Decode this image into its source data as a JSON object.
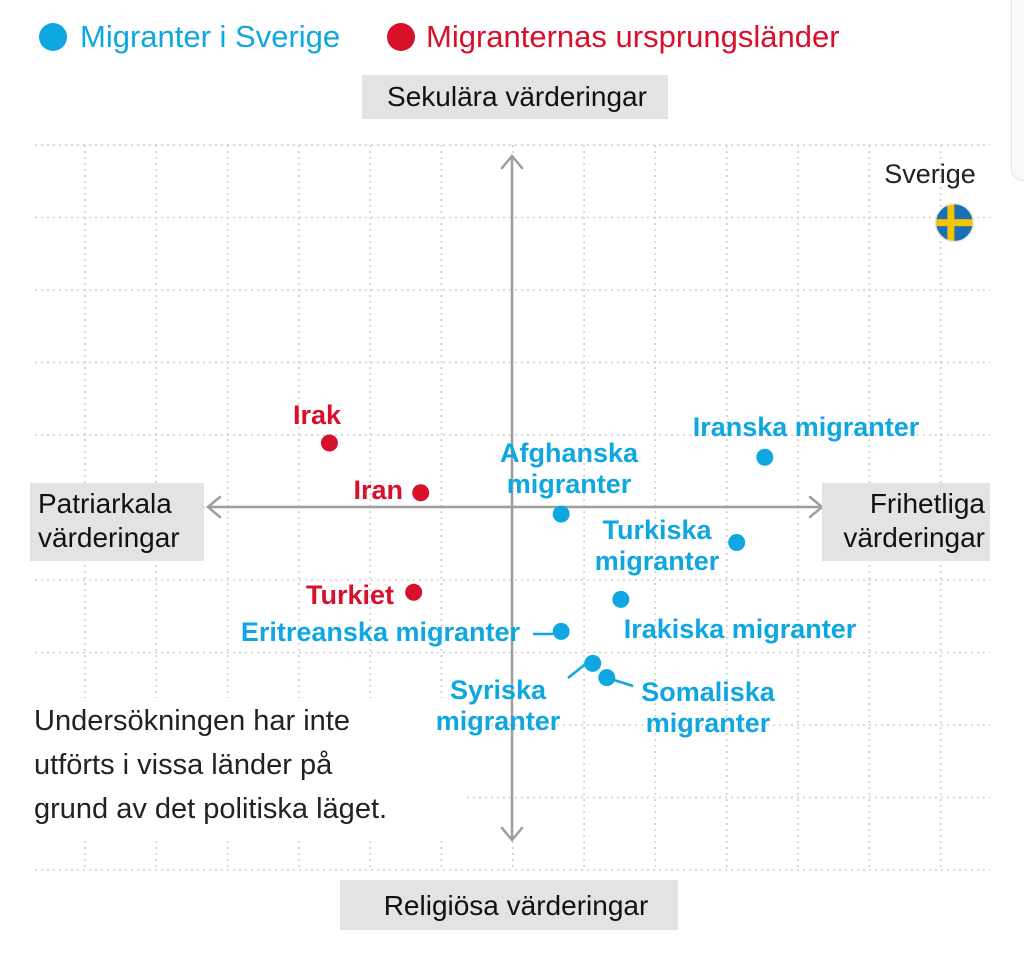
{
  "colors": {
    "blue": "#0fa7df",
    "red": "#d8102c",
    "grid": "#cfcfcf",
    "axis": "#9e9e9e",
    "label_box": "#e3e3e3",
    "text": "#1a1a1a"
  },
  "legend": [
    {
      "label": "Migranter i Sverige",
      "color": "#0fa7df"
    },
    {
      "label": "Migranternas ursprungsländer",
      "color": "#d8102c"
    }
  ],
  "axis_labels": {
    "top": "Sekulära värderingar",
    "bottom": "Religiösa värderingar",
    "left": [
      "Patriarkala",
      "värderingar"
    ],
    "right": [
      "Frihetliga",
      "värderingar"
    ]
  },
  "note": [
    "Undersökningen har inte",
    "utförts i vissa länder på",
    "grund av det politiska läget."
  ],
  "chart_data": {
    "type": "scatter",
    "xlabel": "Patriarkala värderingar – Frihetliga värderingar",
    "ylabel": "Religiösa värderingar – Sekulära värderingar",
    "grid": true,
    "legend_position": "top-left",
    "xlim": [
      -6.8,
      6.8
    ],
    "ylim": [
      -5,
      5.2
    ],
    "points": [
      {
        "label": "Sverige",
        "lines": [
          "Sverige"
        ],
        "group": "sweden",
        "x": 6.3,
        "y": 4.0,
        "icon": "sweden-flag-icon"
      },
      {
        "label": "Irak",
        "lines": [
          "Irak"
        ],
        "group": "origin",
        "x": -2.6,
        "y": 0.9
      },
      {
        "label": "Iran",
        "lines": [
          "Iran"
        ],
        "group": "origin",
        "x": -1.3,
        "y": 0.2
      },
      {
        "label": "Turkiet",
        "lines": [
          "Turkiet"
        ],
        "group": "origin",
        "x": -1.4,
        "y": -1.2
      },
      {
        "label": "Iranska migranter",
        "lines": [
          "Iranska migranter"
        ],
        "group": "migrant",
        "x": 3.6,
        "y": 0.7
      },
      {
        "label": "Afghanska migranter",
        "lines": [
          "Afghanska",
          "migranter"
        ],
        "group": "migrant",
        "x": 0.7,
        "y": -0.1
      },
      {
        "label": "Turkiska migranter",
        "lines": [
          "Turkiska",
          "migranter"
        ],
        "group": "migrant",
        "x": 3.2,
        "y": -0.5
      },
      {
        "label": "Irakiska migranter",
        "lines": [
          "Irakiska migranter"
        ],
        "group": "migrant",
        "x": 1.55,
        "y": -1.3
      },
      {
        "label": "Eritreanska migranter",
        "lines": [
          "Eritreanska migranter"
        ],
        "group": "migrant",
        "x": 0.7,
        "y": -1.75
      },
      {
        "label": "Syriska migranter",
        "lines": [
          "Syriska",
          "migranter"
        ],
        "group": "migrant",
        "x": 1.15,
        "y": -2.2
      },
      {
        "label": "Somaliska migranter",
        "lines": [
          "Somaliska",
          "migranter"
        ],
        "group": "migrant",
        "x": 1.35,
        "y": -2.4
      }
    ]
  }
}
